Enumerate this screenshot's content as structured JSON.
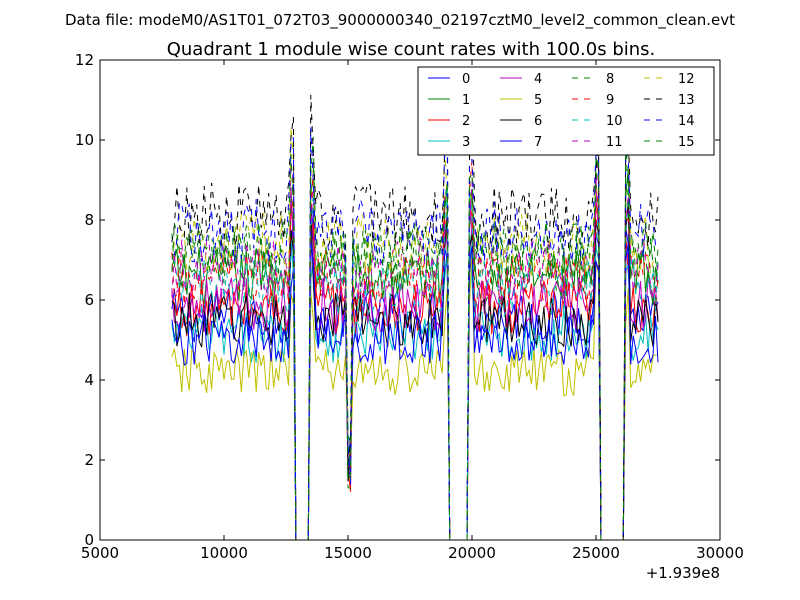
{
  "figure": {
    "suptitle": "Data file: modeM0/AS1T01_072T03_9000000340_02197cztM0_level2_common_clean.evt"
  },
  "chart_data": {
    "type": "line",
    "title": "Quadrant 1 module wise count rates with 100.0s bins.",
    "xlabel": "",
    "ylabel": "",
    "offset_text": "+1.939e8",
    "xlim": [
      5000,
      30000
    ],
    "ylim": [
      0,
      12
    ],
    "xticks": [
      5000,
      10000,
      15000,
      20000,
      25000,
      30000
    ],
    "xtick_labels": [
      "5000",
      "10000",
      "15000",
      "20000",
      "25000",
      "30000"
    ],
    "yticks": [
      0,
      2,
      4,
      6,
      8,
      10,
      12
    ],
    "ytick_labels": [
      "0",
      "2",
      "4",
      "6",
      "8",
      "10",
      "12"
    ],
    "grid": false,
    "legend_position": "top-right",
    "bin_width": 100,
    "x_start": 7900,
    "x_end": 27500,
    "gaps": [
      [
        12850,
        13450
      ],
      [
        19050,
        19850
      ],
      [
        25150,
        26100
      ]
    ],
    "series": [
      {
        "name": "0",
        "color": "#0000ff",
        "style": "solid",
        "base": 5.6
      },
      {
        "name": "1",
        "color": "#008000",
        "style": "solid",
        "base": 6.6
      },
      {
        "name": "2",
        "color": "#ff0000",
        "style": "solid",
        "base": 5.8
      },
      {
        "name": "3",
        "color": "#00bfbf",
        "style": "solid",
        "base": 5.1
      },
      {
        "name": "4",
        "color": "#bf00bf",
        "style": "solid",
        "base": 5.9
      },
      {
        "name": "5",
        "color": "#bfbf00",
        "style": "solid",
        "base": 4.2
      },
      {
        "name": "6",
        "color": "#000000",
        "style": "solid",
        "base": 5.5
      },
      {
        "name": "7",
        "color": "#0000ff",
        "style": "solid",
        "base": 5.0
      },
      {
        "name": "8",
        "color": "#008000",
        "style": "dashed",
        "base": 7.0
      },
      {
        "name": "9",
        "color": "#ff0000",
        "style": "dashed",
        "base": 6.5
      },
      {
        "name": "10",
        "color": "#00bfbf",
        "style": "dashed",
        "base": 6.3
      },
      {
        "name": "11",
        "color": "#bf00bf",
        "style": "dashed",
        "base": 6.8
      },
      {
        "name": "12",
        "color": "#bfbf00",
        "style": "dashed",
        "base": 7.4
      },
      {
        "name": "13",
        "color": "#000000",
        "style": "dashed",
        "base": 8.1
      },
      {
        "name": "14",
        "color": "#0000ff",
        "style": "dashed",
        "base": 7.7
      },
      {
        "name": "15",
        "color": "#008000",
        "style": "dashed",
        "base": 7.2
      }
    ]
  }
}
